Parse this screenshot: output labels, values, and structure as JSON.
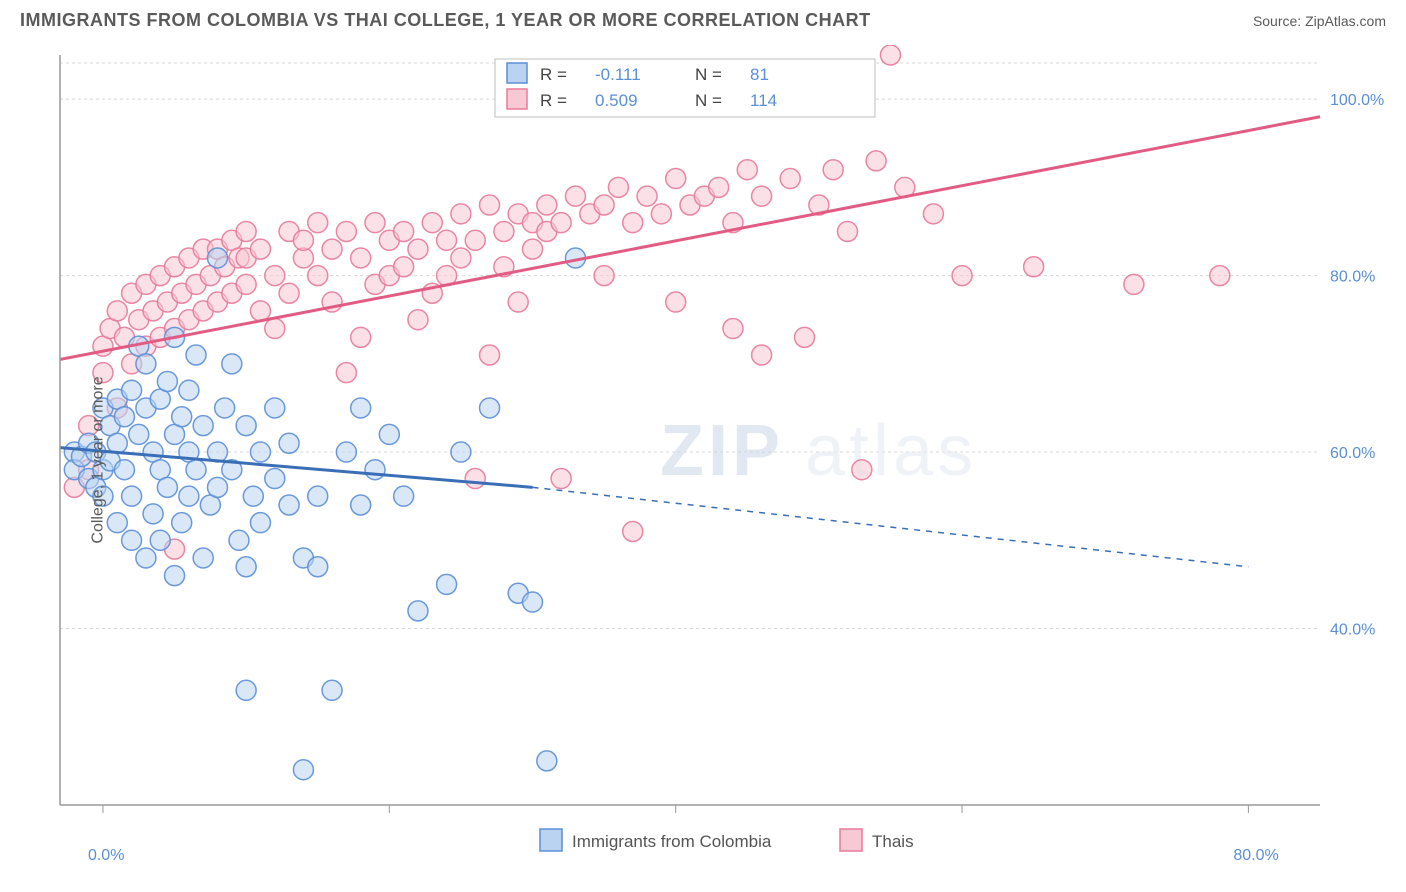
{
  "header": {
    "title": "IMMIGRANTS FROM COLOMBIA VS THAI COLLEGE, 1 YEAR OR MORE CORRELATION CHART",
    "source": "Source: ZipAtlas.com"
  },
  "axes": {
    "ylabel": "College, 1 year or more",
    "ylim": [
      20,
      105
    ],
    "xlim": [
      -3,
      85
    ],
    "yticks": [
      {
        "v": 40,
        "label": "40.0%"
      },
      {
        "v": 60,
        "label": "60.0%"
      },
      {
        "v": 80,
        "label": "80.0%"
      },
      {
        "v": 100,
        "label": "100.0%"
      }
    ],
    "xticks": [
      {
        "v": 0,
        "label": "0.0%"
      },
      {
        "v": 20,
        "label": ""
      },
      {
        "v": 40,
        "label": ""
      },
      {
        "v": 60,
        "label": ""
      },
      {
        "v": 80,
        "label": "80.0%"
      }
    ]
  },
  "colors": {
    "blue_fill": "#b9d3f0",
    "blue_stroke": "#5b8fd6",
    "blue_line": "#3a6fb7",
    "pink_fill": "#f7c9d4",
    "pink_stroke": "#e87a9a",
    "pink_line": "#e25b82",
    "grid": "#d8d8d8",
    "bg": "#ffffff"
  },
  "stats_box": {
    "series": [
      {
        "swatch": "blue",
        "r_label": "R =",
        "r": "-0.111",
        "n_label": "N =",
        "n": "81"
      },
      {
        "swatch": "pink",
        "r_label": "R =",
        "r": "0.509",
        "n_label": "N =",
        "n": "114"
      }
    ]
  },
  "bottom_legend": [
    {
      "swatch": "blue",
      "label": "Immigrants from Colombia"
    },
    {
      "swatch": "pink",
      "label": "Thais"
    }
  ],
  "watermark": {
    "part1": "ZIP",
    "part2": "atlas"
  },
  "marker_radius": 10,
  "marker_opacity": 0.55,
  "series": {
    "blue": {
      "trend": {
        "x1": -3,
        "y1": 60.5,
        "x2": 30,
        "y2": 56,
        "dash_to_x": 80,
        "dash_to_y": 47
      },
      "points": [
        [
          -2,
          60
        ],
        [
          -2,
          58
        ],
        [
          -1.5,
          59.5
        ],
        [
          -1,
          61
        ],
        [
          -1,
          57
        ],
        [
          -0.5,
          60
        ],
        [
          -0.5,
          56
        ],
        [
          0,
          58
        ],
        [
          0,
          65
        ],
        [
          0,
          55
        ],
        [
          0.5,
          63
        ],
        [
          0.5,
          59
        ],
        [
          1,
          66
        ],
        [
          1,
          61
        ],
        [
          1,
          52
        ],
        [
          1.5,
          58
        ],
        [
          1.5,
          64
        ],
        [
          2,
          67
        ],
        [
          2,
          55
        ],
        [
          2,
          50
        ],
        [
          2.5,
          62
        ],
        [
          2.5,
          72
        ],
        [
          3,
          65
        ],
        [
          3,
          70
        ],
        [
          3,
          48
        ],
        [
          3.5,
          60
        ],
        [
          3.5,
          53
        ],
        [
          4,
          66
        ],
        [
          4,
          58
        ],
        [
          4,
          50
        ],
        [
          4.5,
          56
        ],
        [
          4.5,
          68
        ],
        [
          5,
          62
        ],
        [
          5,
          73
        ],
        [
          5,
          46
        ],
        [
          5.5,
          64
        ],
        [
          5.5,
          52
        ],
        [
          6,
          60
        ],
        [
          6,
          67
        ],
        [
          6,
          55
        ],
        [
          6.5,
          71
        ],
        [
          6.5,
          58
        ],
        [
          7,
          63
        ],
        [
          7,
          48
        ],
        [
          7.5,
          54
        ],
        [
          8,
          82
        ],
        [
          8,
          60
        ],
        [
          8,
          56
        ],
        [
          8.5,
          65
        ],
        [
          9,
          58
        ],
        [
          9,
          70
        ],
        [
          9.5,
          50
        ],
        [
          10,
          33
        ],
        [
          10,
          63
        ],
        [
          10,
          47
        ],
        [
          10.5,
          55
        ],
        [
          11,
          60
        ],
        [
          11,
          52
        ],
        [
          12,
          65
        ],
        [
          12,
          57
        ],
        [
          13,
          54
        ],
        [
          13,
          61
        ],
        [
          14,
          48
        ],
        [
          14,
          24
        ],
        [
          15,
          55
        ],
        [
          15,
          47
        ],
        [
          16,
          33
        ],
        [
          17,
          60
        ],
        [
          18,
          65
        ],
        [
          18,
          54
        ],
        [
          19,
          58
        ],
        [
          20,
          62
        ],
        [
          21,
          55
        ],
        [
          22,
          42
        ],
        [
          24,
          45
        ],
        [
          25,
          60
        ],
        [
          27,
          65
        ],
        [
          29,
          44
        ],
        [
          30,
          43
        ],
        [
          31,
          25
        ],
        [
          33,
          82
        ]
      ]
    },
    "pink": {
      "trend": {
        "x1": -3,
        "y1": 70.5,
        "x2": 85,
        "y2": 98
      },
      "points": [
        [
          -2,
          56
        ],
        [
          -1,
          58
        ],
        [
          -1,
          63
        ],
        [
          0,
          72
        ],
        [
          0,
          69
        ],
        [
          0.5,
          74
        ],
        [
          1,
          76
        ],
        [
          1,
          65
        ],
        [
          1.5,
          73
        ],
        [
          2,
          78
        ],
        [
          2,
          70
        ],
        [
          2.5,
          75
        ],
        [
          3,
          79
        ],
        [
          3,
          72
        ],
        [
          3.5,
          76
        ],
        [
          4,
          80
        ],
        [
          4,
          73
        ],
        [
          4.5,
          77
        ],
        [
          5,
          81
        ],
        [
          5,
          74
        ],
        [
          5,
          49
        ],
        [
          5.5,
          78
        ],
        [
          6,
          82
        ],
        [
          6,
          75
        ],
        [
          6.5,
          79
        ],
        [
          7,
          83
        ],
        [
          7,
          76
        ],
        [
          7.5,
          80
        ],
        [
          8,
          83
        ],
        [
          8,
          77
        ],
        [
          8.5,
          81
        ],
        [
          9,
          84
        ],
        [
          9,
          78
        ],
        [
          9.5,
          82
        ],
        [
          10,
          85
        ],
        [
          10,
          79
        ],
        [
          10,
          82
        ],
        [
          11,
          83
        ],
        [
          11,
          76
        ],
        [
          12,
          80
        ],
        [
          12,
          74
        ],
        [
          13,
          85
        ],
        [
          13,
          78
        ],
        [
          14,
          82
        ],
        [
          14,
          84
        ],
        [
          15,
          86
        ],
        [
          15,
          80
        ],
        [
          16,
          83
        ],
        [
          16,
          77
        ],
        [
          17,
          85
        ],
        [
          17,
          69
        ],
        [
          18,
          82
        ],
        [
          18,
          73
        ],
        [
          19,
          86
        ],
        [
          19,
          79
        ],
        [
          20,
          84
        ],
        [
          20,
          80
        ],
        [
          21,
          85
        ],
        [
          21,
          81
        ],
        [
          22,
          83
        ],
        [
          22,
          75
        ],
        [
          23,
          86
        ],
        [
          23,
          78
        ],
        [
          24,
          84
        ],
        [
          24,
          80
        ],
        [
          25,
          87
        ],
        [
          25,
          82
        ],
        [
          26,
          84
        ],
        [
          26,
          57
        ],
        [
          27,
          88
        ],
        [
          27,
          71
        ],
        [
          28,
          85
        ],
        [
          28,
          81
        ],
        [
          29,
          87
        ],
        [
          29,
          77
        ],
        [
          30,
          83
        ],
        [
          30,
          86
        ],
        [
          31,
          88
        ],
        [
          31,
          85
        ],
        [
          32,
          86
        ],
        [
          32,
          57
        ],
        [
          33,
          89
        ],
        [
          34,
          87
        ],
        [
          35,
          88
        ],
        [
          35,
          80
        ],
        [
          36,
          90
        ],
        [
          37,
          86
        ],
        [
          37,
          51
        ],
        [
          38,
          89
        ],
        [
          39,
          87
        ],
        [
          40,
          91
        ],
        [
          40,
          77
        ],
        [
          41,
          88
        ],
        [
          42,
          89
        ],
        [
          43,
          90
        ],
        [
          44,
          86
        ],
        [
          44,
          74
        ],
        [
          45,
          92
        ],
        [
          46,
          71
        ],
        [
          46,
          89
        ],
        [
          48,
          91
        ],
        [
          49,
          73
        ],
        [
          50,
          88
        ],
        [
          51,
          92
        ],
        [
          52,
          85
        ],
        [
          53,
          58
        ],
        [
          54,
          93
        ],
        [
          55,
          105
        ],
        [
          56,
          90
        ],
        [
          58,
          87
        ],
        [
          60,
          80
        ],
        [
          65,
          81
        ],
        [
          72,
          79
        ],
        [
          78,
          80
        ]
      ]
    }
  }
}
